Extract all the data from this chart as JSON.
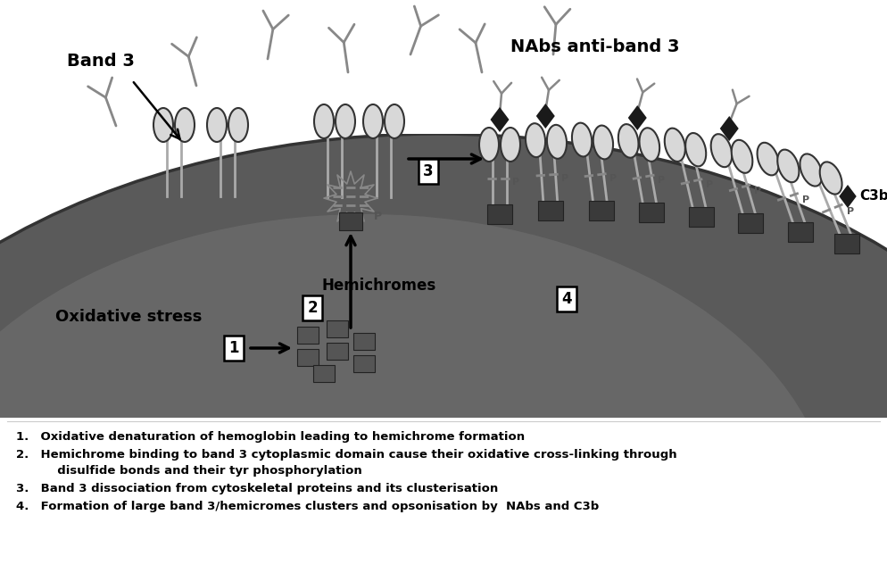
{
  "figure_width": 9.94,
  "figure_height": 6.42,
  "bg_color": "#ffffff",
  "band3_label": "Band 3",
  "nabs_label": "NAbs anti-band 3",
  "c3b_label": "C3b",
  "oxidative_label": "Oxidative stress",
  "hemichrome_label": "Hemichromes",
  "ab_color": "#888888",
  "ellipse_color": "#d8d8d8",
  "ellipse_edge": "#333333",
  "stem_color": "#aaaaaa",
  "hemi_color": "#555555",
  "cluster_hemi_color": "#3a3a3a",
  "diamond_color": "#1a1a1a",
  "starburst_color": "#888888",
  "cell_fill": "#707070",
  "cell_edge": "#444444",
  "legend_line1": "Oxidative denaturation of hemoglobin leading to hemichrome formation",
  "legend_line2": "Hemichrome binding to band 3 cytoplasmic domain cause their oxidative cross-linking through",
  "legend_line2b": "   disulfide bonds and their tyr phosphorylation",
  "legend_line3": "Band 3 dissociation from cytoskeletal proteins and its clusterisation",
  "legend_line4": "Formation of large band 3/hemicromes clusters and opsonisation by  NAbs and C3b"
}
